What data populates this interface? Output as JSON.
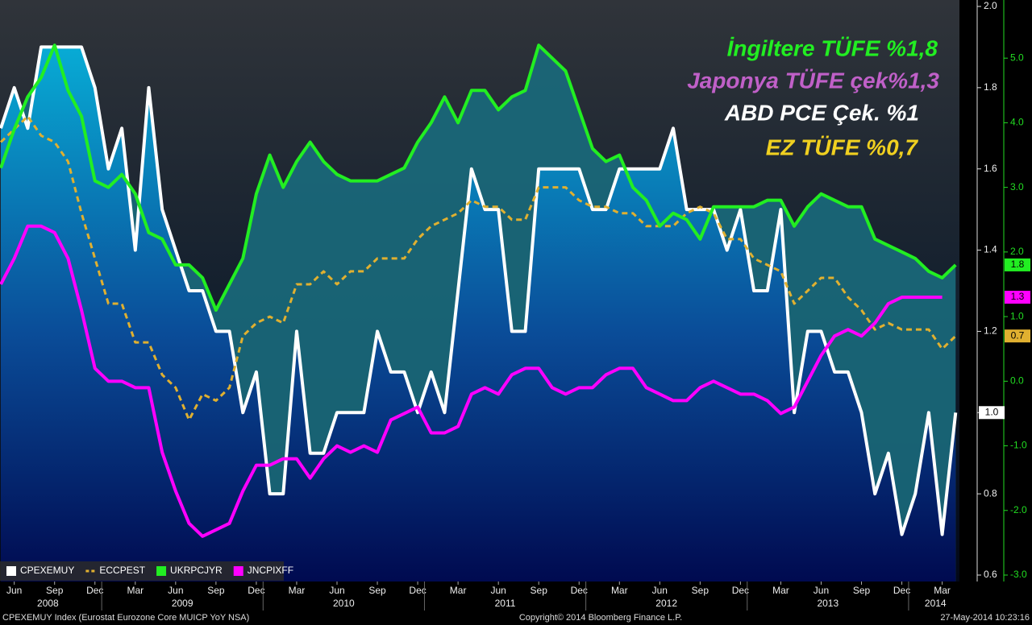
{
  "chart_data": {
    "type": "line",
    "categories": [
      null,
      "Jun",
      null,
      null,
      "Sep",
      null,
      null,
      "Dec",
      null,
      null,
      "Mar",
      null,
      null,
      "Jun",
      null,
      null,
      "Sep",
      null,
      null,
      "Dec",
      null,
      null,
      "Mar",
      null,
      null,
      "Jun",
      null,
      null,
      "Sep",
      null,
      null,
      "Dec",
      null,
      null,
      "Mar",
      null,
      null,
      "Jun",
      null,
      null,
      "Sep",
      null,
      null,
      "Dec",
      null,
      null,
      "Mar",
      null,
      null,
      "Jun",
      null,
      null,
      "Sep",
      null,
      null,
      "Dec",
      null,
      null,
      "Mar",
      null,
      null,
      "Jun",
      null,
      null,
      "Sep",
      null,
      null,
      "Dec",
      null,
      null,
      "Mar",
      null
    ],
    "years": [
      "2008",
      "2009",
      "2010",
      "2011",
      "2012",
      "2013",
      "2014"
    ],
    "ylim": [
      0.6,
      2.0
    ],
    "yticks": [
      0.6,
      0.8,
      {
        "value": 1.0,
        "label": "1.0"
      },
      1.2,
      1.4,
      1.6,
      1.8,
      {
        "value": 2.0,
        "label": "2.0"
      }
    ],
    "y2lim": [
      -3,
      5.8
    ],
    "y2ticks": [
      {
        "value": -3,
        "label": "-3.0"
      },
      {
        "value": -2,
        "label": "-2.0"
      },
      {
        "value": -1,
        "label": "-1.0"
      },
      {
        "value": 0,
        "label": "0.0"
      },
      {
        "value": 1,
        "label": "1.0"
      },
      {
        "value": 2,
        "label": "2.0"
      },
      {
        "value": 3,
        "label": "3.0"
      },
      {
        "value": 4,
        "label": "4.0"
      },
      {
        "value": 5,
        "label": "5.0"
      }
    ],
    "y2color": "#22dd22",
    "series": [
      {
        "name": "CPEXEMUY",
        "color": "#ffffff",
        "area_color": "#07a6cf",
        "last_value_label": "1.0",
        "values": [
          1.7,
          1.8,
          1.7,
          1.9,
          1.9,
          1.9,
          1.9,
          1.8,
          1.6,
          1.7,
          1.4,
          1.8,
          1.5,
          1.4,
          1.3,
          1.3,
          1.2,
          1.2,
          1.0,
          1.1,
          0.8,
          0.8,
          1.2,
          0.9,
          0.9,
          1.0,
          1.0,
          1.0,
          1.2,
          1.1,
          1.1,
          1.0,
          1.1,
          1.0,
          1.3,
          1.6,
          1.5,
          1.5,
          1.2,
          1.2,
          1.6,
          1.6,
          1.6,
          1.6,
          1.5,
          1.5,
          1.6,
          1.6,
          1.6,
          1.6,
          1.7,
          1.5,
          1.5,
          1.5,
          1.4,
          1.5,
          1.3,
          1.3,
          1.5,
          1.0,
          1.2,
          1.2,
          1.1,
          1.1,
          1.0,
          0.8,
          0.9,
          0.7,
          0.8,
          1.0,
          0.7,
          1.0
        ]
      },
      {
        "name": "ECCPEST",
        "color": "#e0b030",
        "dashed": true,
        "axis": "y2",
        "last_value_label": "0.7",
        "values": [
          3.7,
          3.9,
          4.1,
          3.8,
          3.7,
          3.4,
          2.6,
          1.9,
          1.2,
          1.2,
          0.6,
          0.6,
          0.1,
          -0.1,
          -0.6,
          -0.2,
          -0.3,
          -0.1,
          0.7,
          0.9,
          1.0,
          0.9,
          1.5,
          1.5,
          1.7,
          1.5,
          1.7,
          1.7,
          1.9,
          1.9,
          1.9,
          2.2,
          2.4,
          2.5,
          2.6,
          2.8,
          2.7,
          2.7,
          2.5,
          2.5,
          3.0,
          3.0,
          3.0,
          2.8,
          2.7,
          2.7,
          2.6,
          2.6,
          2.4,
          2.4,
          2.4,
          2.6,
          2.7,
          2.6,
          2.2,
          2.2,
          1.9,
          1.8,
          1.7,
          1.2,
          1.4,
          1.6,
          1.6,
          1.3,
          1.1,
          0.8,
          0.9,
          0.8,
          0.8,
          0.8,
          0.5,
          0.7
        ]
      },
      {
        "name": "UKRPCJYR",
        "color": "#22ee22",
        "area_color": "#1a6a7c",
        "axis": "y2",
        "last_value_label": "1.8",
        "values": [
          3.3,
          3.9,
          4.4,
          4.7,
          5.2,
          4.5,
          4.1,
          3.1,
          3.0,
          3.2,
          2.9,
          2.3,
          2.2,
          1.8,
          1.8,
          1.6,
          1.1,
          1.5,
          1.9,
          2.9,
          3.5,
          3.0,
          3.4,
          3.7,
          3.4,
          3.2,
          3.1,
          3.1,
          3.1,
          3.2,
          3.3,
          3.7,
          4.0,
          4.4,
          4.0,
          4.5,
          4.5,
          4.2,
          4.4,
          4.5,
          5.2,
          5.0,
          4.8,
          4.2,
          3.6,
          3.4,
          3.5,
          3.0,
          2.8,
          2.4,
          2.6,
          2.5,
          2.2,
          2.7,
          2.7,
          2.7,
          2.7,
          2.8,
          2.8,
          2.4,
          2.7,
          2.9,
          2.8,
          2.7,
          2.7,
          2.2,
          2.1,
          2.0,
          1.9,
          1.7,
          1.6,
          1.8
        ]
      },
      {
        "name": "JNCPIXFF",
        "color": "#ff00ff",
        "axis": "y2",
        "last_value_label": "1.3",
        "values": [
          1.5,
          1.9,
          2.4,
          2.4,
          2.3,
          1.9,
          1.1,
          0.2,
          0.0,
          0.0,
          -0.1,
          -0.1,
          -1.1,
          -1.7,
          -2.2,
          -2.4,
          -2.3,
          -2.2,
          -1.7,
          -1.3,
          -1.3,
          -1.2,
          -1.2,
          -1.5,
          -1.2,
          -1.0,
          -1.1,
          -1.0,
          -1.1,
          -0.6,
          -0.5,
          -0.4,
          -0.8,
          -0.8,
          -0.7,
          -0.2,
          -0.1,
          -0.2,
          0.1,
          0.2,
          0.2,
          -0.1,
          -0.2,
          -0.1,
          -0.1,
          0.1,
          0.2,
          0.2,
          -0.1,
          -0.2,
          -0.3,
          -0.3,
          -0.1,
          0.0,
          -0.1,
          -0.2,
          -0.2,
          -0.3,
          -0.5,
          -0.4,
          0.0,
          0.4,
          0.7,
          0.8,
          0.7,
          0.9,
          1.2,
          1.3,
          1.3,
          1.3,
          1.3,
          null
        ]
      }
    ],
    "annotations": [
      {
        "text": "İngiltere TÜFE %1,8",
        "color": "#22ee22"
      },
      {
        "text": "Japonya TÜFE çek%1,3",
        "color": "#c060c8"
      },
      {
        "text": "ABD PCE Çek. %1",
        "color": "#ffffff"
      },
      {
        "text": "EZ TÜFE %0,7",
        "color": "#f0d020"
      }
    ],
    "footer": {
      "left": "CPEXEMUY Index (Eurostat Eurozone Core MUICP YoY NSA)",
      "center": "Copyright© 2014 Bloomberg Finance L.P.",
      "right": "27-May-2014 10:23:16"
    }
  }
}
